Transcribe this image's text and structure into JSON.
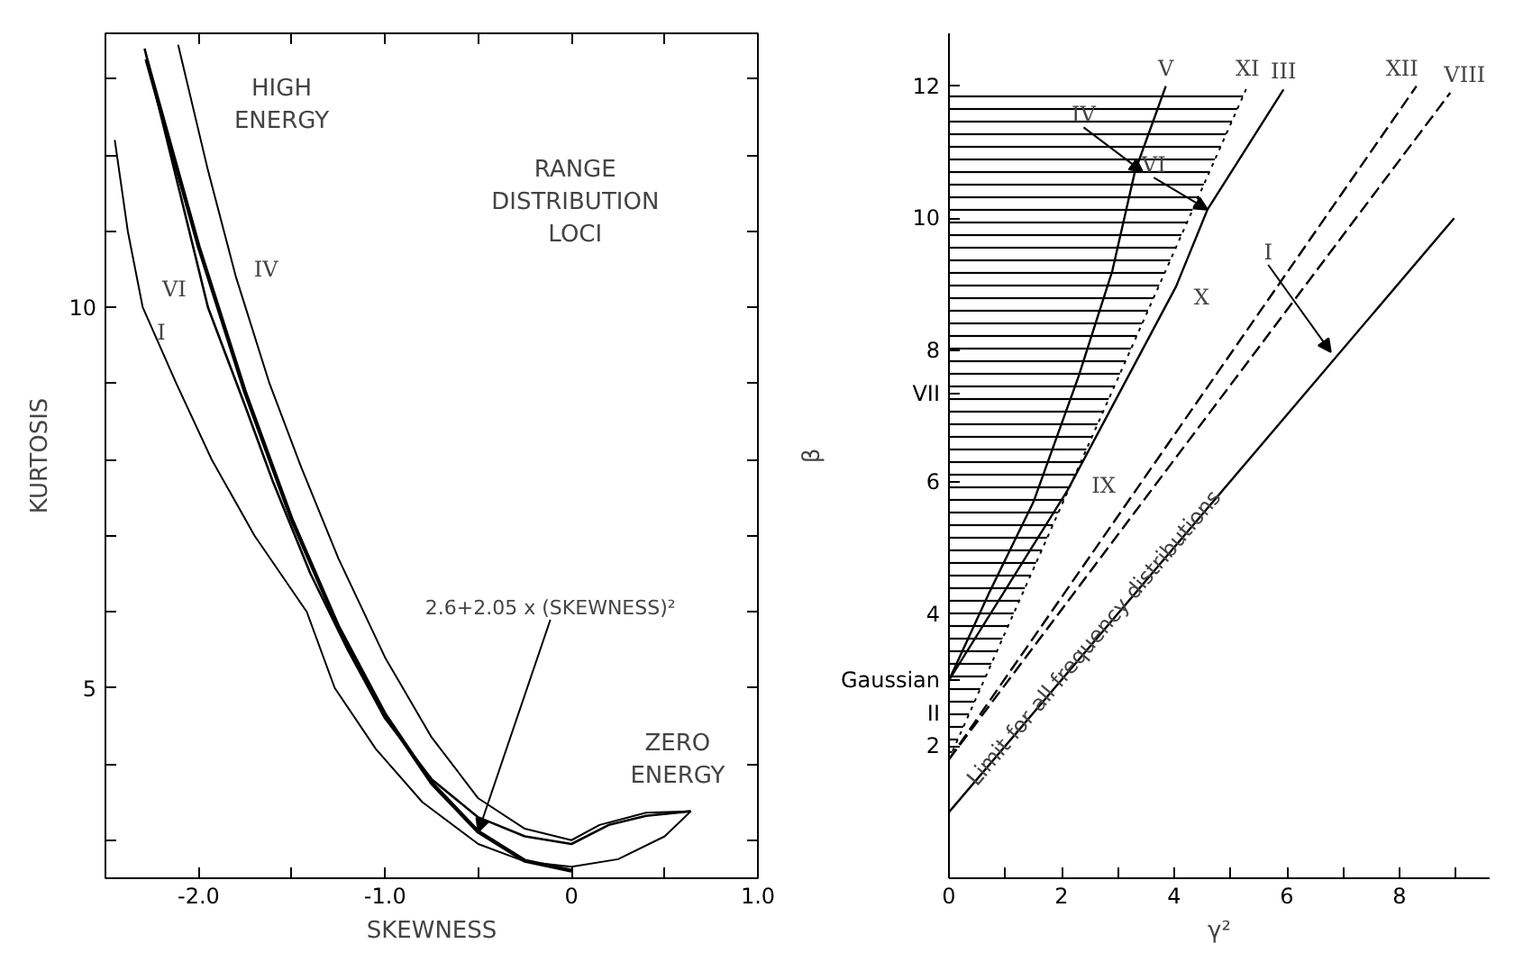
{
  "chart_data": [
    {
      "type": "line",
      "title": "RANGE DISTRIBUTION LOCI",
      "xlabel": "SKEWNESS",
      "ylabel": "KURTOSIS",
      "xlim": [
        -2.5,
        1.0
      ],
      "ylim": [
        2.5,
        13.6
      ],
      "xticks": [
        {
          "value": -2,
          "label": "-2.0"
        },
        {
          "value": -1.5,
          "label": null
        },
        {
          "value": -1,
          "label": "-1.0"
        },
        {
          "value": -0.5,
          "label": null
        },
        0,
        {
          "value": 0.5,
          "label": null
        },
        {
          "value": 1,
          "label": "1.0"
        }
      ],
      "yticks": [
        {
          "value": 3,
          "label": null
        },
        {
          "value": 4,
          "label": null
        },
        5,
        {
          "value": 6,
          "label": null
        },
        {
          "value": 7,
          "label": null
        },
        {
          "value": 8,
          "label": null
        },
        {
          "value": 9,
          "label": null
        },
        10,
        {
          "value": 11,
          "label": null
        },
        {
          "value": 12,
          "label": null
        },
        {
          "value": 13,
          "label": null
        }
      ],
      "grid": false,
      "legend": false,
      "annotations": [
        "HIGH ENERGY",
        "ZERO ENERGY",
        {
          "text": "2.6+2.05 x (SKEWNESS)²",
          "x": -0.5,
          "y": 3.11
        }
      ],
      "series": [
        {
          "name": "I",
          "color": "#000000",
          "x": [
            -2.45,
            -2.38,
            -2.3,
            -2.12,
            -1.93,
            -1.7,
            -1.42,
            -1.27,
            -1.05,
            -0.8,
            -0.5,
            -0.25,
            0,
            0.25,
            0.5,
            0.64
          ],
          "values": [
            12.2,
            11.0,
            10.0,
            9.0,
            8.0,
            7.0,
            6.0,
            5.0,
            4.2,
            3.5,
            2.95,
            2.72,
            2.65,
            2.75,
            3.05,
            3.38
          ]
        },
        {
          "name": "VI",
          "color": "#000000",
          "x": [
            -2.29,
            -2.1,
            -1.95,
            -1.75,
            -1.6,
            -1.4,
            -1.2,
            -1.0,
            -0.75,
            -0.5,
            -0.25,
            0,
            0.2,
            0.4,
            0.64
          ],
          "values": [
            13.4,
            11.5,
            10.0,
            8.7,
            7.7,
            6.5,
            5.5,
            4.6,
            3.8,
            3.3,
            3.05,
            2.95,
            3.2,
            3.32,
            3.38
          ]
        },
        {
          "name": "IV",
          "color": "#000000",
          "x": [
            -2.11,
            -1.95,
            -1.8,
            -1.62,
            -1.45,
            -1.25,
            -1.0,
            -0.75,
            -0.5,
            -0.25,
            0,
            0.15,
            0.4,
            0.64
          ],
          "values": [
            13.45,
            11.8,
            10.4,
            9.0,
            7.9,
            6.7,
            5.4,
            4.35,
            3.55,
            3.15,
            3.0,
            3.2,
            3.36,
            3.38
          ]
        },
        {
          "color": "#000000",
          "x": [
            -2.28,
            -2.0,
            -1.75,
            -1.5,
            -1.25,
            -1.0,
            -0.75,
            -0.5,
            -0.25,
            0
          ],
          "values": [
            13.26,
            10.8,
            8.88,
            7.21,
            5.8,
            4.65,
            3.75,
            3.11,
            2.73,
            2.6
          ]
        }
      ]
    },
    {
      "type": "line",
      "xlabel": "γ²",
      "ylabel": "β",
      "xlim": [
        0,
        9.6
      ],
      "ylim": [
        0,
        12.8
      ],
      "xticks": [
        0,
        {
          "value": 1,
          "label": null
        },
        2,
        {
          "value": 3,
          "label": null
        },
        4,
        {
          "value": 5,
          "label": null
        },
        6,
        {
          "value": 7,
          "label": null
        },
        8,
        {
          "value": 9,
          "label": null
        }
      ],
      "yticks": [
        2,
        4,
        6,
        8,
        10,
        12
      ],
      "grid": false,
      "legend": false,
      "annotations": [
        {
          "text": "IV",
          "x": 3.44,
          "y": 10.7
        },
        {
          "text": "VI",
          "x": 4.59,
          "y": 10.13
        },
        {
          "text": "I",
          "x": 6.78,
          "y": 7.97
        },
        {
          "text": "X",
          "x": 4.03,
          "y": 8.96
        },
        "IX",
        "VII",
        {
          "text": "Gaussian",
          "x": 0,
          "y": 3
        },
        "II"
      ],
      "series": [
        {
          "name": "XI",
          "color": "#000000",
          "line_style": "dotted",
          "x": [
            0,
            5.3
          ],
          "values": [
            1.8,
            12
          ]
        },
        {
          "name": "V",
          "color": "#000000",
          "x": [
            0,
            0.7,
            1.5,
            2.3,
            2.9,
            3.3,
            3.85
          ],
          "values": [
            3,
            4.3,
            5.7,
            7.6,
            9.2,
            10.7,
            12
          ]
        },
        {
          "name": "III",
          "color": "#000000",
          "x": [
            0,
            2.1,
            4.03,
            4.59,
            5.94
          ],
          "values": [
            3,
            5.87,
            8.96,
            10.13,
            11.95
          ]
        },
        {
          "name": "XII",
          "color": "#000000",
          "line_style": "dashed",
          "x": [
            0,
            8.3
          ],
          "values": [
            1.8,
            12
          ]
        },
        {
          "name": "VIII",
          "color": "#000000",
          "line_style": "dashed",
          "x": [
            0,
            8.9
          ],
          "values": [
            1.8,
            11.9
          ]
        },
        {
          "name": "Limit for all frequency distributions",
          "color": "#000000",
          "x": [
            0,
            8.97
          ],
          "values": [
            1,
            10
          ]
        }
      ]
    }
  ]
}
